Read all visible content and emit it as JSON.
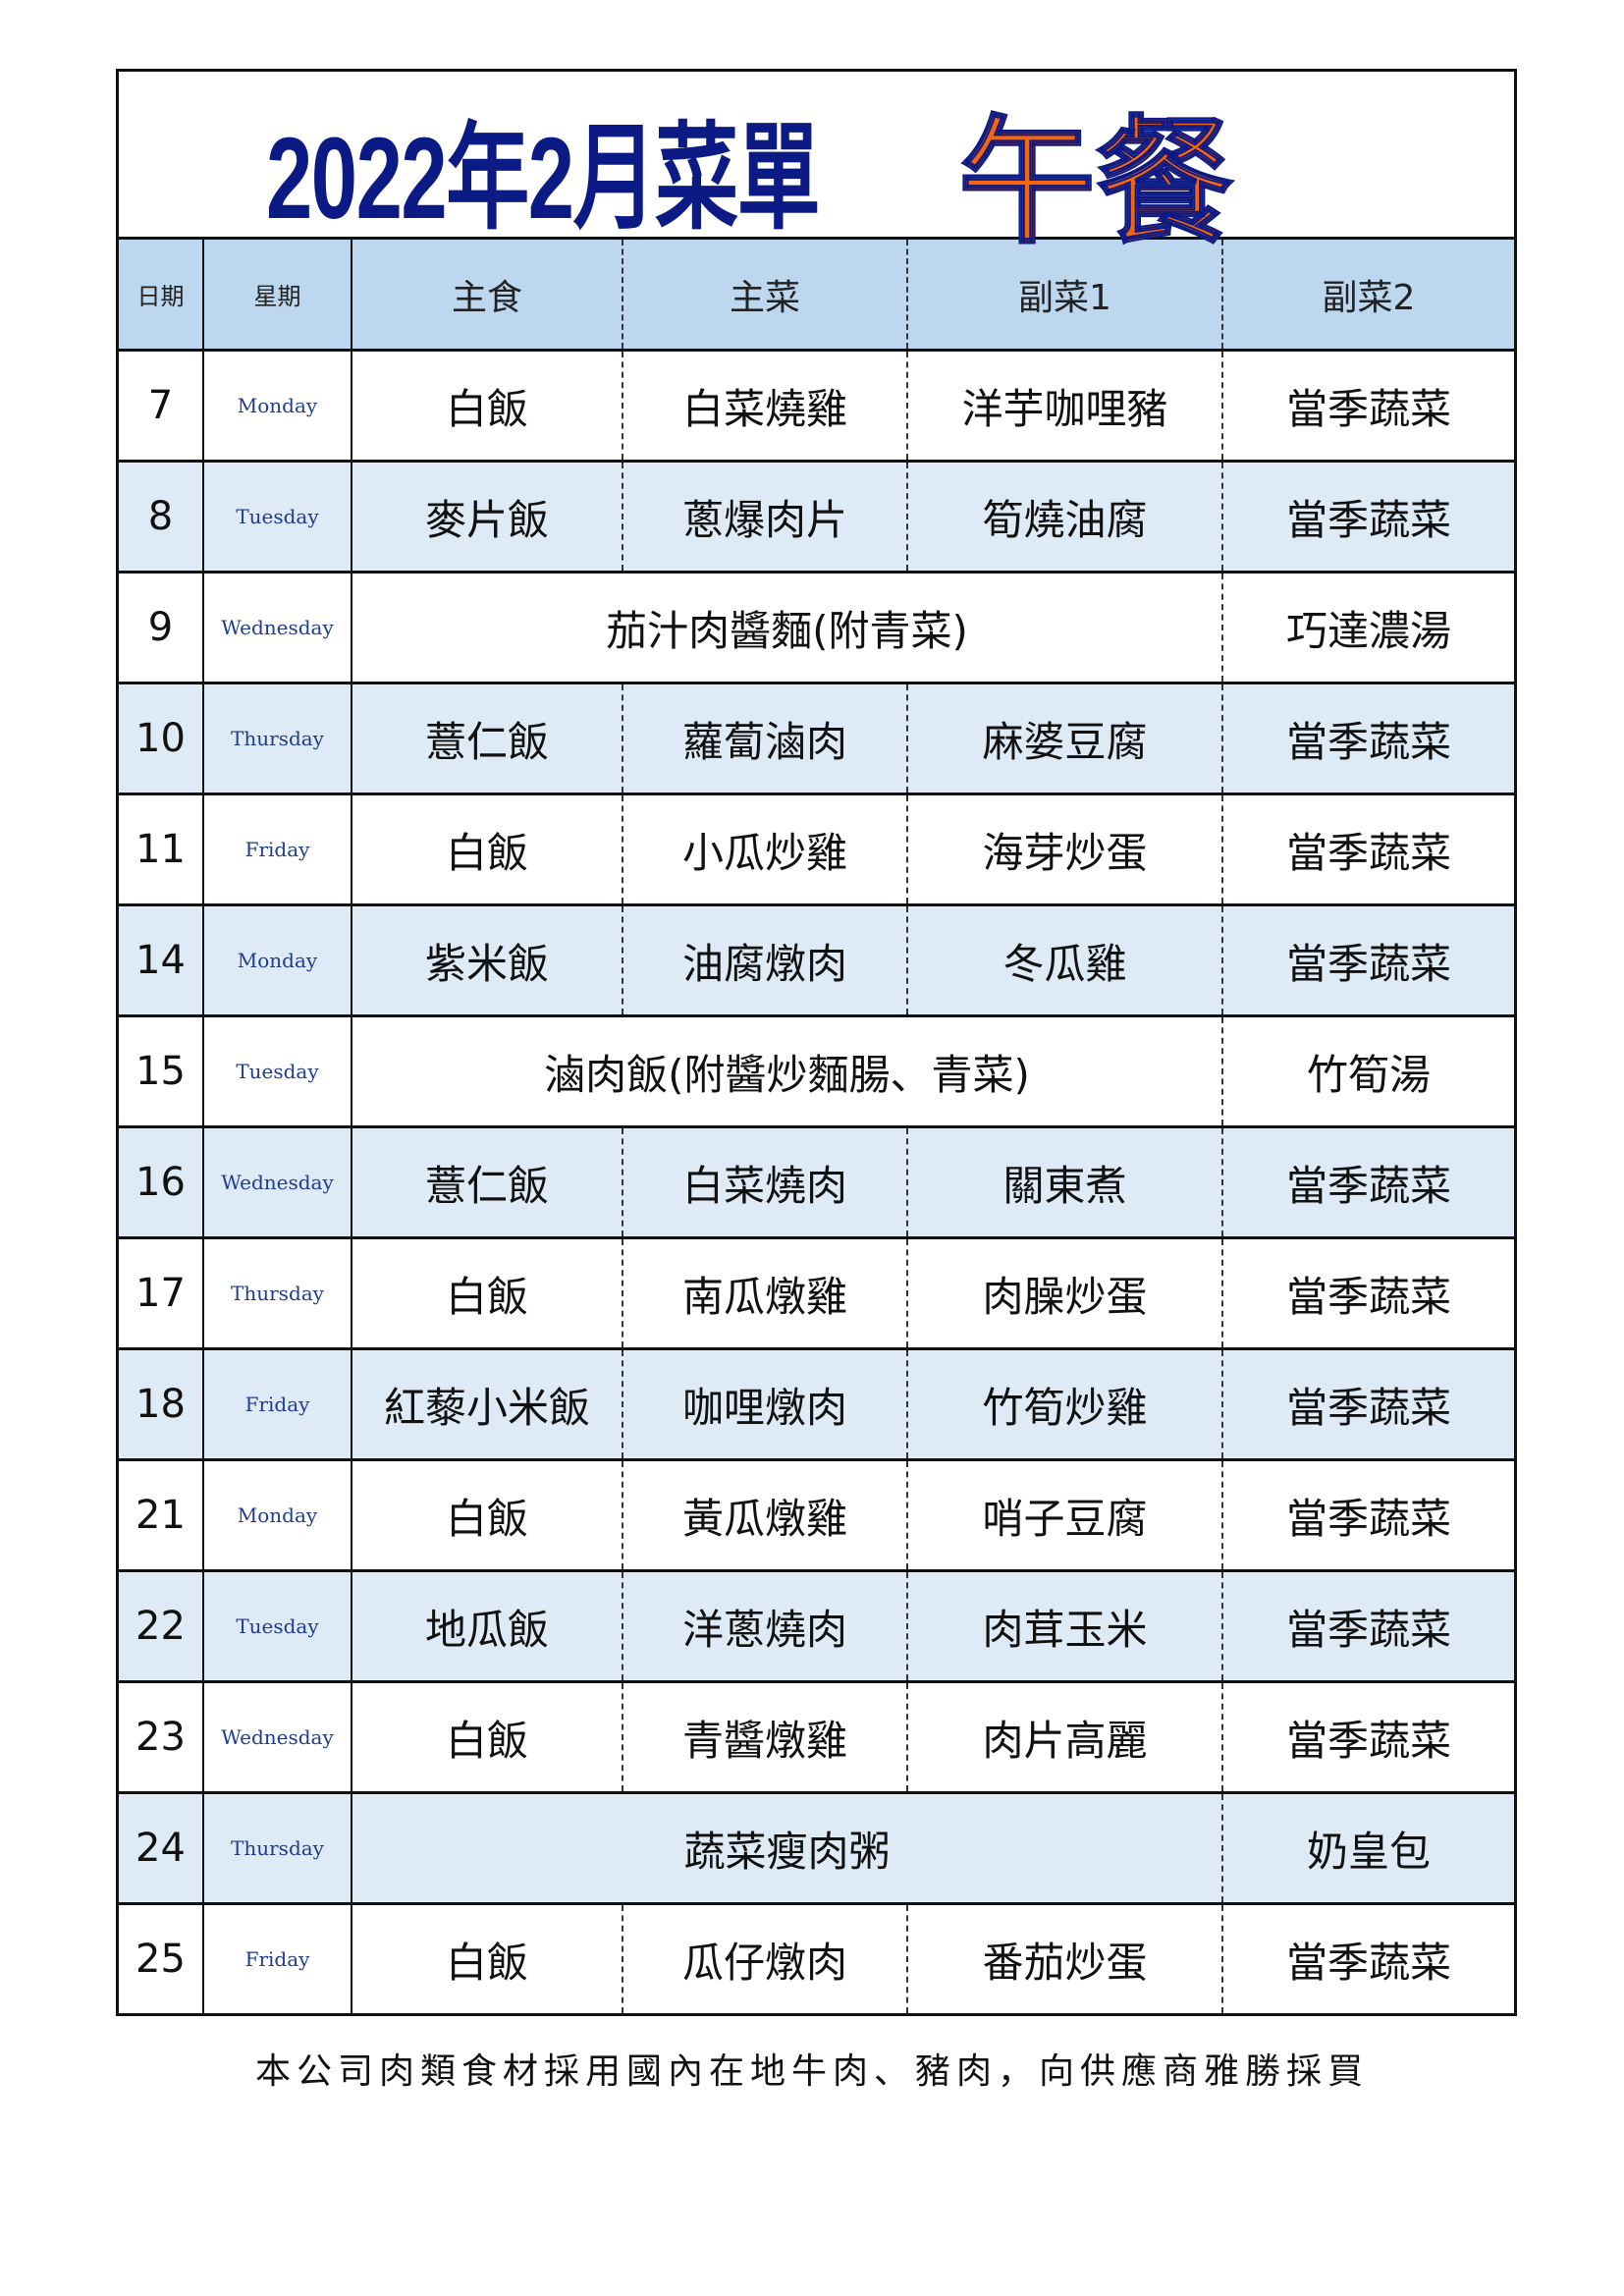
{
  "title": {
    "main": "2022年2月菜單",
    "meal": "午餐"
  },
  "colors": {
    "title": "#0c1a86",
    "meal": "#f7650b",
    "header_bg": "#bdd7ee",
    "alt_row_bg": "#deeaf6"
  },
  "headers": [
    "日期",
    "星期",
    "主食",
    "主菜",
    "副菜1",
    "副菜2"
  ],
  "rows": [
    {
      "date": "7",
      "day": "Monday",
      "staple": "白飯",
      "main": "白菜燒雞",
      "side1": "洋芋咖哩豬",
      "side2": "當季蔬菜"
    },
    {
      "date": "8",
      "day": "Tuesday",
      "staple": "麥片飯",
      "main": "蔥爆肉片",
      "side1": "筍燒油腐",
      "side2": "當季蔬菜"
    },
    {
      "date": "9",
      "day": "Wednesday",
      "combined": "茄汁肉醬麵(附青菜)",
      "side2": "巧達濃湯"
    },
    {
      "date": "10",
      "day": "Thursday",
      "staple": "薏仁飯",
      "main": "蘿蔔滷肉",
      "side1": "麻婆豆腐",
      "side2": "當季蔬菜"
    },
    {
      "date": "11",
      "day": "Friday",
      "staple": "白飯",
      "main": "小瓜炒雞",
      "side1": "海芽炒蛋",
      "side2": "當季蔬菜"
    },
    {
      "date": "14",
      "day": "Monday",
      "staple": "紫米飯",
      "main": "油腐燉肉",
      "side1": "冬瓜雞",
      "side2": "當季蔬菜"
    },
    {
      "date": "15",
      "day": "Tuesday",
      "combined": "滷肉飯(附醬炒麵腸、青菜)",
      "side2": "竹筍湯"
    },
    {
      "date": "16",
      "day": "Wednesday",
      "staple": "薏仁飯",
      "main": "白菜燒肉",
      "side1": "關東煮",
      "side2": "當季蔬菜"
    },
    {
      "date": "17",
      "day": "Thursday",
      "staple": "白飯",
      "main": "南瓜燉雞",
      "side1": "肉臊炒蛋",
      "side2": "當季蔬菜"
    },
    {
      "date": "18",
      "day": "Friday",
      "staple": "紅藜小米飯",
      "main": "咖哩燉肉",
      "side1": "竹筍炒雞",
      "side2": "當季蔬菜"
    },
    {
      "date": "21",
      "day": "Monday",
      "staple": "白飯",
      "main": "黃瓜燉雞",
      "side1": "哨子豆腐",
      "side2": "當季蔬菜"
    },
    {
      "date": "22",
      "day": "Tuesday",
      "staple": "地瓜飯",
      "main": "洋蔥燒肉",
      "side1": "肉茸玉米",
      "side2": "當季蔬菜"
    },
    {
      "date": "23",
      "day": "Wednesday",
      "staple": "白飯",
      "main": "青醬燉雞",
      "side1": "肉片高麗",
      "side2": "當季蔬菜"
    },
    {
      "date": "24",
      "day": "Thursday",
      "combined": "蔬菜瘦肉粥",
      "side2": "奶皇包"
    },
    {
      "date": "25",
      "day": "Friday",
      "staple": "白飯",
      "main": "瓜仔燉肉",
      "side1": "番茄炒蛋",
      "side2": "當季蔬菜"
    }
  ],
  "footer": "本公司肉類食材採用國內在地牛肉、豬肉，向供應商雅勝採買"
}
